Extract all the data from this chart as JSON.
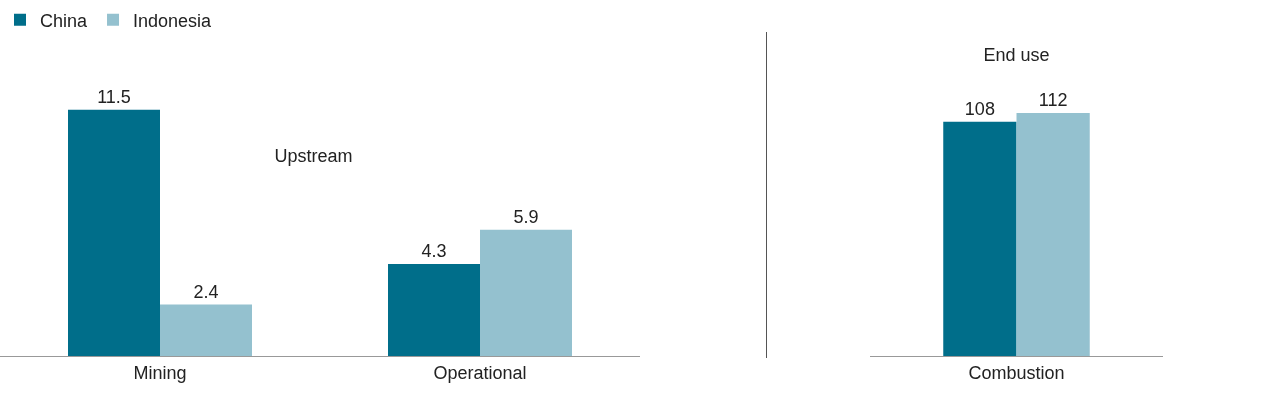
{
  "chart_data": [
    {
      "type": "bar",
      "title": "Upstream",
      "categories": [
        "Mining",
        "Operational"
      ],
      "series": [
        {
          "name": "China",
          "color": "#006e8a",
          "values": [
            11.5,
            4.3
          ]
        },
        {
          "name": "Indonesia",
          "color": "#94c1cf",
          "values": [
            2.4,
            5.9
          ]
        }
      ],
      "data_labels": true,
      "legend": "top left",
      "tick_labels": "x"
    },
    {
      "type": "bar",
      "title": "End use",
      "categories": [
        "Combustion"
      ],
      "series": [
        {
          "color": "#006e8a",
          "values": [
            108
          ]
        },
        {
          "color": "#94c1cf",
          "values": [
            112
          ]
        }
      ],
      "data_labels": true,
      "tick_labels": "x"
    }
  ]
}
